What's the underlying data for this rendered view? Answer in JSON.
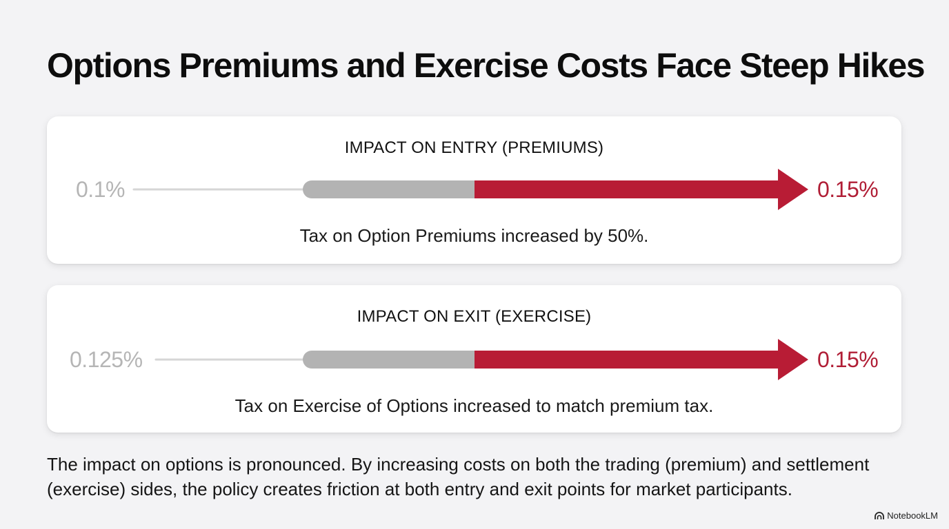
{
  "title": "Options Premiums and Exercise Costs Face Steep Hikes",
  "panels": [
    {
      "heading": "IMPACT ON ENTRY (PREMIUMS)",
      "old_value": "0.1%",
      "new_value": "0.15%",
      "caption": "Tax on Option Premiums increased by 50%."
    },
    {
      "heading": "IMPACT ON EXIT (EXERCISE)",
      "old_value": "0.125%",
      "new_value": "0.15%",
      "caption": "Tax on Exercise of Options increased to match premium tax."
    }
  ],
  "summary": "The impact on options is pronounced. By increasing costs on both the trading (premium) and settlement (exercise) sides, the policy creates friction at both entry and exit points for market participants.",
  "brand": {
    "name": "NotebookLM",
    "icon": "notebooklm-logo-icon"
  },
  "colors": {
    "background": "#f3f3f5",
    "old_line": "#d6d6d6",
    "old_segment": "#b3b3b3",
    "increase": "#b81c35",
    "old_value_text": "#b5b5b5",
    "new_value_text": "#b01d35"
  }
}
